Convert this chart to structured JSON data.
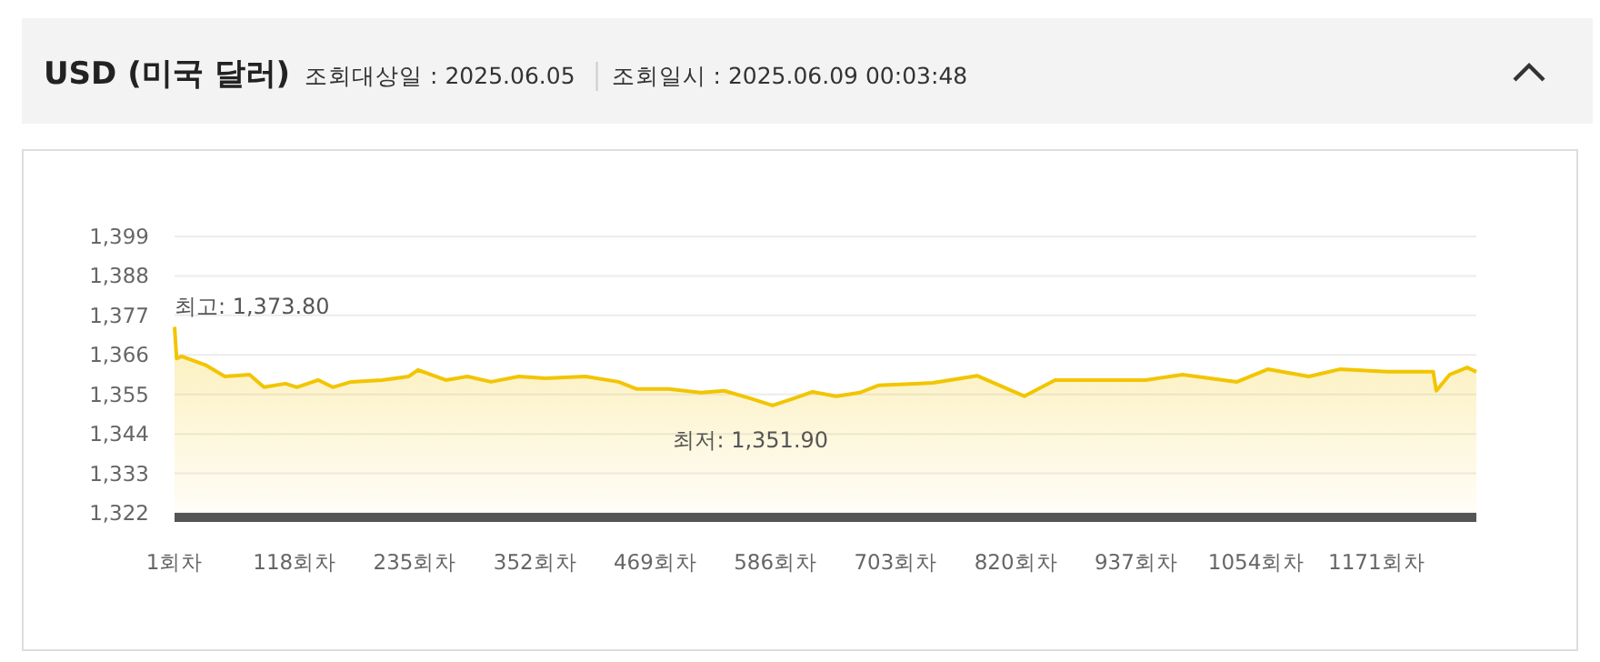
{
  "chart_data": {
    "type": "area",
    "title": "USD (미국 달러)",
    "subtitle": "조회대상일 : 2025.06.05",
    "annotations": [
      "조회일시 : 2025.06.09 00:03:48",
      {
        "text": "최고: 1,373.80",
        "x": 1,
        "y": 1373.8
      },
      {
        "text": "최저: 1,351.90",
        "x": 583,
        "y": 1351.9
      }
    ],
    "x": [
      1,
      3,
      8,
      31,
      50,
      74,
      88,
      109,
      120,
      141,
      155,
      173,
      203,
      229,
      238,
      265,
      286,
      309,
      336,
      362,
      401,
      433,
      451,
      482,
      513,
      536,
      560,
      583,
      605,
      622,
      645,
      668,
      686,
      739,
      782,
      828,
      858,
      946,
      982,
      1035,
      1065,
      1105,
      1135,
      1181,
      1226,
      1229,
      1242,
      1259,
      1268
    ],
    "series": [
      {
        "color": "#f2c500",
        "values": [
          1373.8,
          1365,
          1365.6,
          1363.2,
          1360,
          1360.5,
          1357,
          1358,
          1357,
          1359,
          1357,
          1358.5,
          1359,
          1360,
          1361.8,
          1359,
          1360,
          1358.5,
          1360,
          1359.5,
          1360,
          1358.5,
          1356.5,
          1356.5,
          1355.5,
          1356,
          1354,
          1351.9,
          1354,
          1355.7,
          1354.5,
          1355.5,
          1357.5,
          1358.2,
          1360.2,
          1354.5,
          1359,
          1359,
          1360.5,
          1358.5,
          1362,
          1360,
          1362,
          1361.3,
          1361.3,
          1356,
          1360.5,
          1362.5,
          1361.3
        ]
      }
    ],
    "xlim": [
      1,
      1268
    ],
    "xticks": [
      {
        "value": 1,
        "label": "1회차"
      },
      {
        "value": 118,
        "label": "118회차"
      },
      {
        "value": 235,
        "label": "235회차"
      },
      {
        "value": 352,
        "label": "352회차"
      },
      {
        "value": 469,
        "label": "469회차"
      },
      {
        "value": 586,
        "label": "586회차"
      },
      {
        "value": 703,
        "label": "703회차"
      },
      {
        "value": 820,
        "label": "820회차"
      },
      {
        "value": 937,
        "label": "937회차"
      },
      {
        "value": 1054,
        "label": "1054회차"
      },
      {
        "value": 1171,
        "label": "1171회차"
      }
    ],
    "ylim": [
      1322,
      1399
    ],
    "yticks": [
      {
        "value": 1322,
        "label": "1,322"
      },
      {
        "value": 1333,
        "label": "1,333"
      },
      {
        "value": 1344,
        "label": "1,344"
      },
      {
        "value": 1355,
        "label": "1,355"
      },
      {
        "value": 1366,
        "label": "1,366"
      },
      {
        "value": 1377,
        "label": "1,377"
      },
      {
        "value": 1388,
        "label": "1,388"
      },
      {
        "value": 1399,
        "label": "1,399"
      }
    ],
    "grid": "y"
  }
}
